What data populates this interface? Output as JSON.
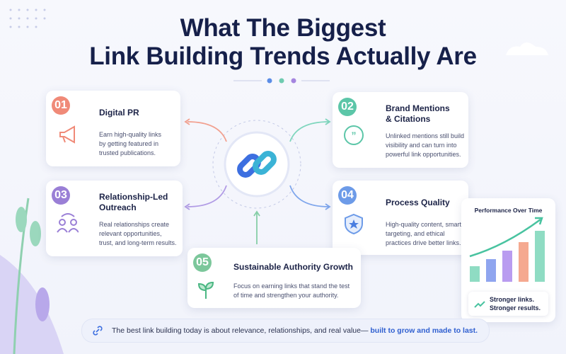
{
  "header": {
    "title_lines": [
      "What The Biggest",
      "Link Building Trends Actually Are"
    ]
  },
  "cards": [
    {
      "number": "01",
      "title_lines": [
        "Digital PR"
      ],
      "description_lines": [
        "Earn high-quality links",
        "by getting featured in",
        "trusted publications."
      ]
    },
    {
      "number": "02",
      "title_lines": [
        "Brand Mentions",
        "& Citations"
      ],
      "description_lines": [
        "Unlinked mentions still build",
        "visibility and can turn into",
        "powerful link opportunities."
      ]
    },
    {
      "number": "03",
      "title_lines": [
        "Relationship-Led",
        "Outreach"
      ],
      "description_lines": [
        "Real relationships create",
        "relevant opportunities,",
        "trust, and long-term results."
      ]
    },
    {
      "number": "04",
      "title_lines": [
        "Process Quality"
      ],
      "description_lines": [
        "High-quality content, smart",
        "targeting, and ethical",
        "practices drive better links."
      ]
    },
    {
      "number": "05",
      "title_lines": [
        "Sustainable Authority Growth"
      ],
      "description_lines": [
        "Focus on earning links that stand the test",
        "of time and strengthen your authority."
      ]
    }
  ],
  "side_panel": {
    "title": "Performance Over Time",
    "caption_lines": [
      "Stronger links.",
      "Stronger results."
    ]
  },
  "footer": {
    "text": "The best link building today is about relevance, relationships, and real value—",
    "highlight": "built to grow and made to last."
  }
}
